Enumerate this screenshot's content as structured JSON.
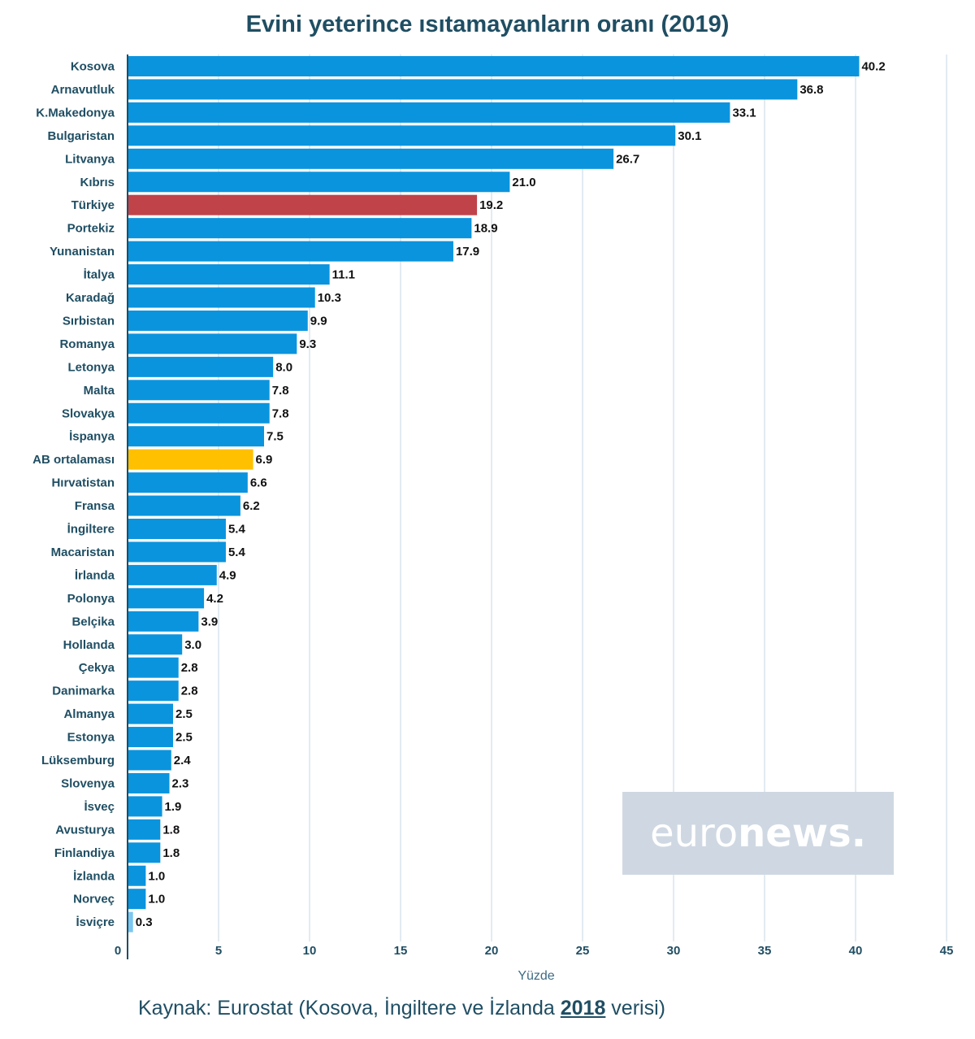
{
  "chart_data": {
    "type": "bar",
    "orientation": "horizontal",
    "title": "Evini yeterince ısıtamayanların oranı (2019)",
    "xlabel": "Yüzde",
    "xlim": [
      0,
      45
    ],
    "xticks": [
      0,
      5,
      10,
      15,
      20,
      25,
      30,
      35,
      40,
      45
    ],
    "grid": "vertical",
    "categories": [
      "Kosova",
      "Arnavutluk",
      "K.Makedonya",
      "Bulgaristan",
      "Litvanya",
      "Kıbrıs",
      "Türkiye",
      "Portekiz",
      "Yunanistan",
      "İtalya",
      "Karadağ",
      "Sırbistan",
      "Romanya",
      "Letonya",
      "Malta",
      "Slovakya",
      "İspanya",
      "AB ortalaması",
      "Hırvatistan",
      "Fransa",
      "İngiltere",
      "Macaristan",
      "İrlanda",
      "Polonya",
      "Belçika",
      "Hollanda",
      "Çekya",
      "Danimarka",
      "Almanya",
      "Estonya",
      "Lüksemburg",
      "Slovenya",
      "İsveç",
      "Avusturya",
      "Finlandiya",
      "İzlanda",
      "Norveç",
      "İsviçre"
    ],
    "values": [
      40.2,
      36.8,
      33.1,
      30.1,
      26.7,
      21.0,
      19.2,
      18.9,
      17.9,
      11.1,
      10.3,
      9.9,
      9.3,
      8.0,
      7.8,
      7.8,
      7.5,
      6.9,
      6.6,
      6.2,
      5.4,
      5.4,
      4.9,
      4.2,
      3.9,
      3.0,
      2.8,
      2.8,
      2.5,
      2.5,
      2.4,
      2.3,
      1.9,
      1.8,
      1.8,
      1.0,
      1.0,
      0.3
    ],
    "value_labels": [
      "40.2",
      "36.8",
      "33.1",
      "30.1",
      "26.7",
      "21.0",
      "19.2",
      "18.9",
      "17.9",
      "11.1",
      "10.3",
      "9.9",
      "9.3",
      "8.0",
      "7.8",
      "7.8",
      "7.5",
      "6.9",
      "6.6",
      "6.2",
      "5.4",
      "5.4",
      "4.9",
      "4.2",
      "3.9",
      "3.0",
      "2.8",
      "2.8",
      "2.5",
      "2.5",
      "2.4",
      "2.3",
      "1.9",
      "1.8",
      "1.8",
      "1.0",
      "1.0",
      "0.3"
    ],
    "colors": {
      "default": "#0a94de",
      "highlight": {
        "Türkiye": "#c0434a",
        "AB ortalaması": "#ffc000",
        "İsviçre": "#7cc6ef"
      },
      "grid": "#c9d7e3",
      "axis": "#1f4e63"
    }
  },
  "footer": {
    "source_prefix": "Kaynak: Eurostat (Kosova, İngiltere ve İzlanda ",
    "source_year": "2018",
    "source_suffix": " verisi)"
  },
  "logo": {
    "light": "euro",
    "bold": "news",
    "dot": "."
  }
}
